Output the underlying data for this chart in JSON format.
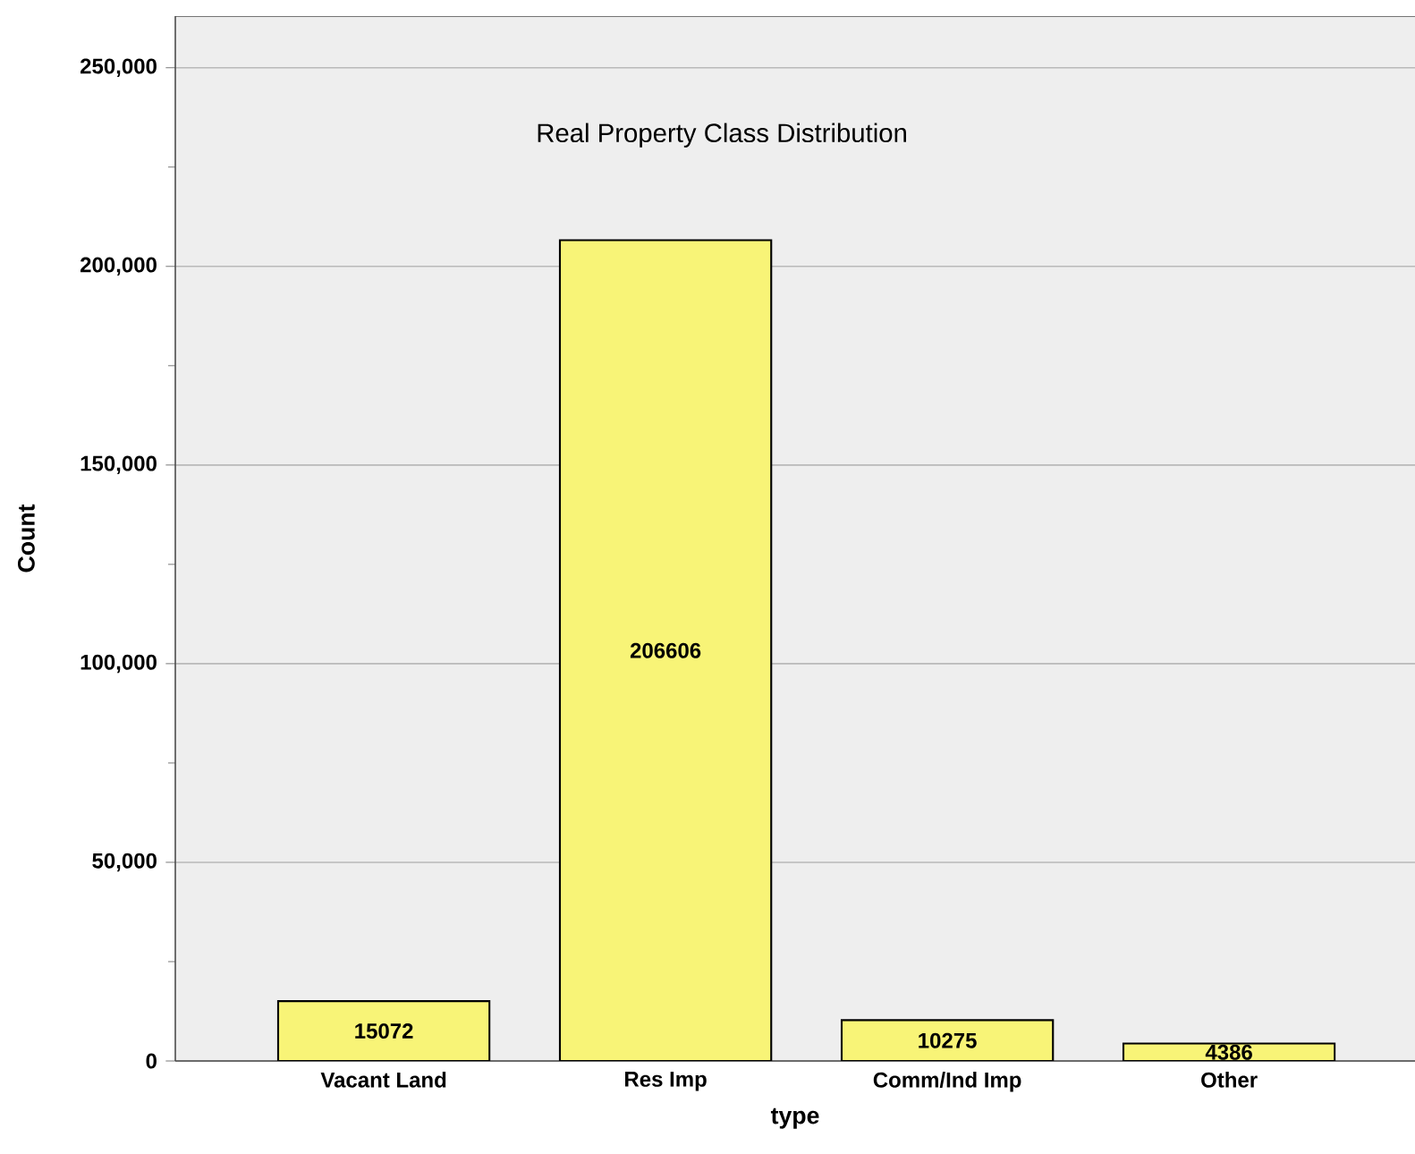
{
  "chart_data": {
    "type": "bar",
    "title": "Real Property Class Distribution",
    "xlabel": "type",
    "ylabel": "Count",
    "categories": [
      "Vacant Land",
      "Res Imp",
      "Comm/Ind Imp",
      "Other"
    ],
    "values": [
      15072,
      206606,
      10275,
      4386
    ],
    "color": "#f8f477",
    "ylim": [
      0,
      263000
    ],
    "yticks": [
      0,
      {
        "value": 50000,
        "label": "50,000"
      },
      {
        "value": 100000,
        "label": "100,000"
      },
      {
        "value": 150000,
        "label": "150,000"
      },
      {
        "value": 200000,
        "label": "200,000"
      },
      {
        "value": 250000,
        "label": "250,000"
      }
    ],
    "grid": "y",
    "data_labels": true
  }
}
